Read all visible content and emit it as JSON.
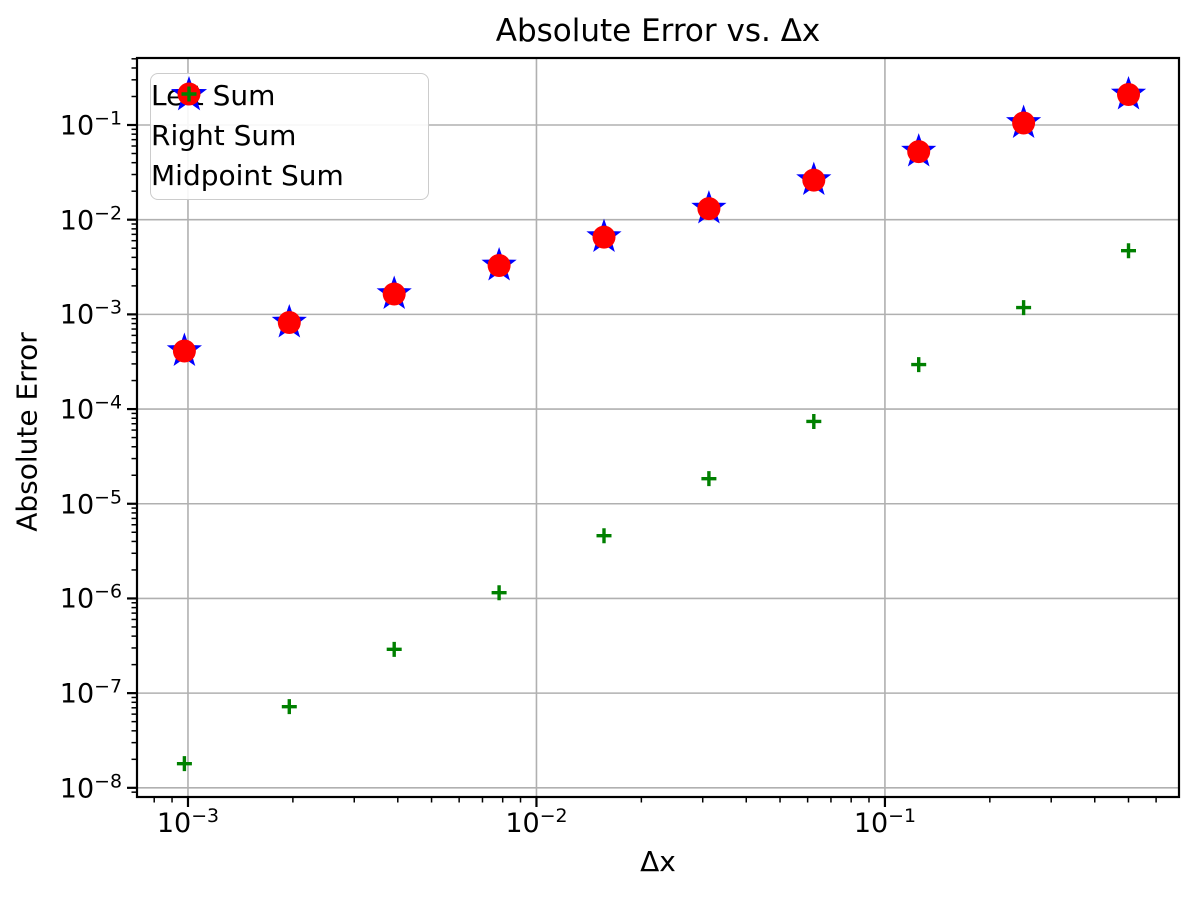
{
  "figure": {
    "title": "Absolute Error vs. Δx",
    "xlabel": "Δx",
    "ylabel": "Absolute Error"
  },
  "colors": {
    "grid": "#b0b0b0",
    "spine": "#000000",
    "background": "#ffffff",
    "legend_border": "#cccccc",
    "left_sum": "#0000ff",
    "right_sum": "#ff0000",
    "midpoint_sum": "#008000"
  },
  "chart_data": {
    "type": "scatter",
    "title": "Absolute Error vs. Δx",
    "xlabel": "Δx",
    "ylabel": "Absolute Error",
    "x_scale": "log",
    "y_scale": "log",
    "xlim": [
      0.000714,
      0.698
    ],
    "ylim": [
      8e-09,
      0.51
    ],
    "x_tick_exponents": [
      -3,
      -2,
      -1
    ],
    "y_tick_exponents": [
      -1,
      -2,
      -3,
      -4,
      -5,
      -6,
      -7,
      -8
    ],
    "grid": true,
    "legend_position": "upper left",
    "x": [
      0.0009766,
      0.0019531,
      0.0039063,
      0.0078125,
      0.015625,
      0.03125,
      0.0625,
      0.125,
      0.25,
      0.5
    ],
    "series": [
      {
        "name": "Left Sum",
        "marker": "star",
        "color": "#0000ff",
        "values": [
          0.00041,
          0.00082,
          0.00164,
          0.00328,
          0.00655,
          0.0131,
          0.0262,
          0.0524,
          0.105,
          0.21
        ]
      },
      {
        "name": "Right Sum",
        "marker": "circle",
        "color": "#ff0000",
        "values": [
          0.00041,
          0.00082,
          0.00164,
          0.00328,
          0.00655,
          0.0131,
          0.0262,
          0.0524,
          0.105,
          0.21
        ]
      },
      {
        "name": "Midpoint Sum",
        "marker": "plus",
        "color": "#008000",
        "values": [
          1.8e-08,
          7.2e-08,
          2.9e-07,
          1.15e-06,
          4.6e-06,
          1.84e-05,
          7.4e-05,
          0.000295,
          0.00118,
          0.0047
        ]
      }
    ]
  }
}
